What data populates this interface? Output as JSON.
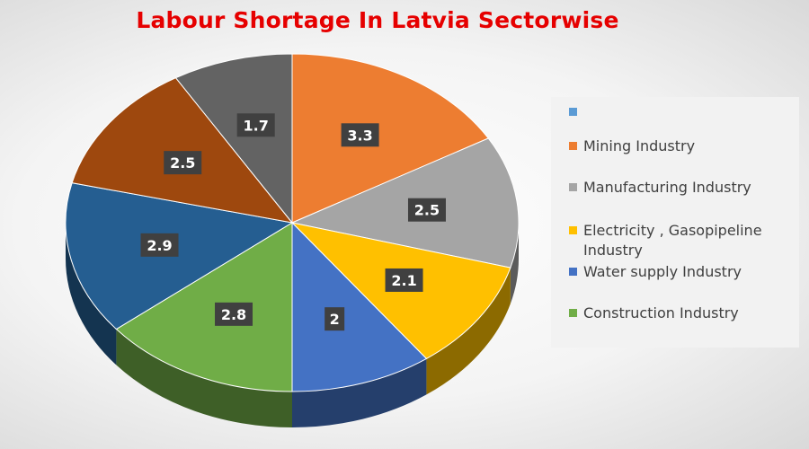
{
  "chart_data": {
    "type": "pie",
    "title": "Labour Shortage In Latvia Sectorwise",
    "legend_position": "right",
    "three_d": true,
    "slices": [
      {
        "label": "Mining Industry",
        "value": 3.3,
        "color": "#ED7D31",
        "in_legend": true
      },
      {
        "label": "Manufacturing Industry",
        "value": 2.5,
        "color": "#A5A5A5",
        "in_legend": true
      },
      {
        "label": "Electricity , Gasopipeline Industry",
        "value": 2.1,
        "color": "#FFC000",
        "in_legend": true
      },
      {
        "label": "Water supply Industry",
        "value": 2,
        "color": "#4472C4",
        "in_legend": true
      },
      {
        "label": "Construction Industry",
        "value": 2.8,
        "color": "#70AD47",
        "in_legend": true
      },
      {
        "label": "",
        "value": 2.9,
        "color": "#255E91",
        "in_legend": false
      },
      {
        "label": "",
        "value": 2.5,
        "color": "#9E480E",
        "in_legend": false
      },
      {
        "label": "",
        "value": 1.7,
        "color": "#636363",
        "in_legend": false
      }
    ],
    "legend_entries": [
      {
        "label": "",
        "color": "#5B9BD5"
      },
      {
        "label": "Mining Industry",
        "color": "#ED7D31"
      },
      {
        "label": "Manufacturing Industry",
        "color": "#A5A5A5"
      },
      {
        "label": "Electricity , Gasopipeline Industry",
        "color": "#FFC000"
      },
      {
        "label": "Water supply Industry",
        "color": "#4472C4"
      },
      {
        "label": "Construction Industry",
        "color": "#70AD47"
      }
    ]
  }
}
